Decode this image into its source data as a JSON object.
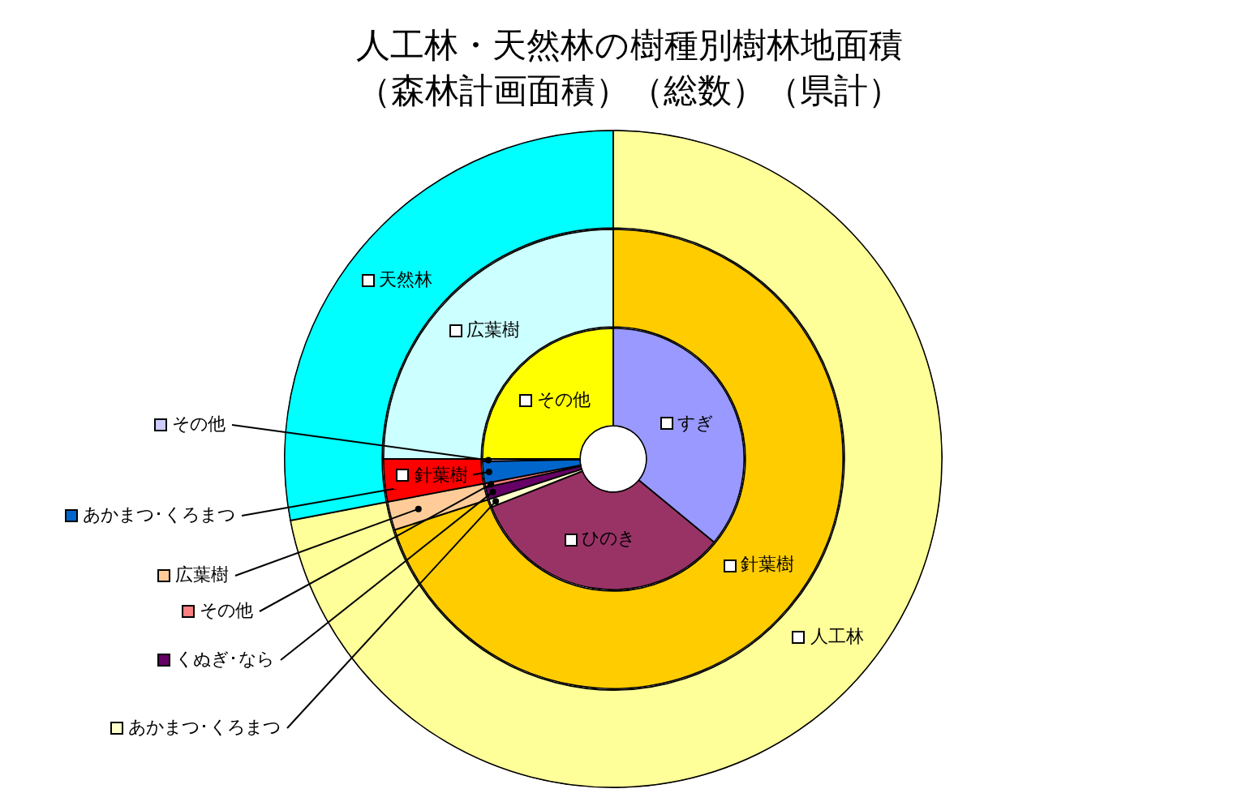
{
  "chart_data": [
    {
      "type": "donut",
      "title": "人工林・天然林の樹種別樹林地面積",
      "subtitle": "（森林計画面積）（総数）（県計）",
      "categories": [
        "人工林",
        "天然林"
      ],
      "values": [
        72,
        28
      ],
      "colors": [
        "#ffff99",
        "#00ffff"
      ]
    },
    {
      "type": "donut",
      "legend": "left",
      "categories": [
        "針葉樹",
        "広葉樹",
        "針葉樹",
        "広葉樹"
      ],
      "values": [
        70,
        2,
        3,
        25
      ],
      "colors": [
        "#ffcc00",
        "#ffcc99",
        "#ff0000",
        "#ccffff"
      ]
    },
    {
      "type": "donut",
      "legend": "left",
      "categories": [
        "すぎ",
        "ひのき",
        "あかまつ･くろまつ",
        "くぬぎ･なら",
        "その他",
        "あかまつ･くろまつ",
        "その他",
        "その他"
      ],
      "values": [
        36,
        33,
        1,
        1.5,
        0.5,
        2.7,
        0.3,
        25
      ],
      "colors": [
        "#9999ff",
        "#993366",
        "#ffffcc",
        "#660066",
        "#ff8080",
        "#0066cc",
        "#ccccff",
        "#ffff00"
      ]
    }
  ]
}
